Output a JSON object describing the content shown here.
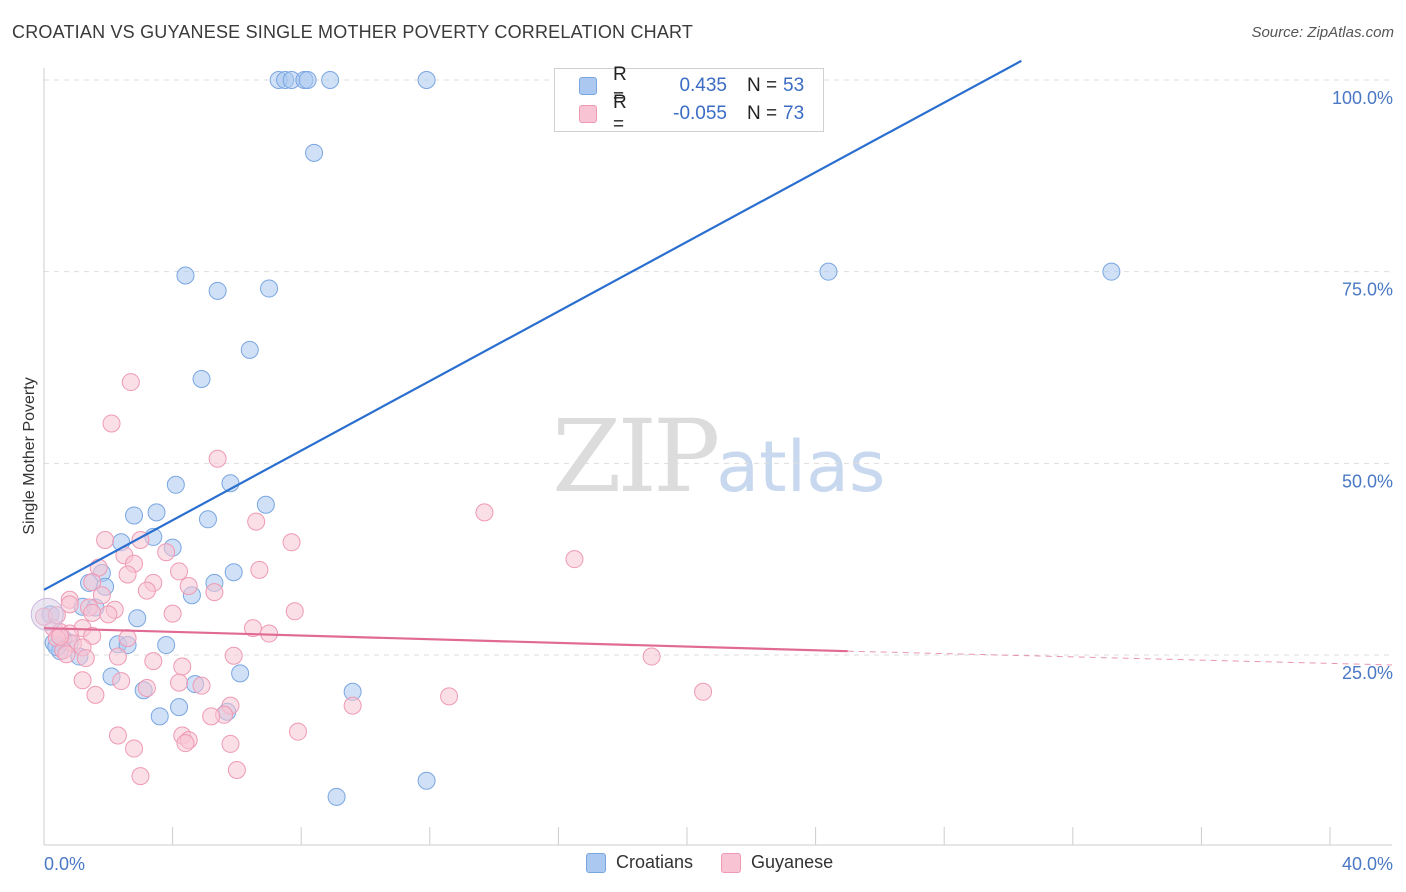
{
  "title": "CROATIAN VS GUYANESE SINGLE MOTHER POVERTY CORRELATION CHART",
  "source": "Source: ZipAtlas.com",
  "watermark": {
    "zip": "ZIP",
    "atlas": "atlas"
  },
  "legend": {
    "rows": [
      {
        "r_label": "R =",
        "r_value": "0.435",
        "n_label": "N =",
        "n_value": "53",
        "color": "#aac8f0",
        "border": "#7aa6e0"
      },
      {
        "r_label": "R =",
        "r_value": "-0.055",
        "n_label": "N =",
        "n_value": "73",
        "color": "#f8c4d4",
        "border": "#ee9ab4"
      }
    ]
  },
  "bottom_legend": [
    {
      "label": "Croatians",
      "color": "#aac8f0",
      "border": "#7aa6e0"
    },
    {
      "label": "Guyanese",
      "color": "#f8c4d4",
      "border": "#ee9ab4"
    }
  ],
  "chart_data": {
    "type": "scatter",
    "title": "CROATIAN VS GUYANESE SINGLE MOTHER POVERTY CORRELATION CHART",
    "xlabel": "",
    "ylabel": "Single Mother Poverty",
    "xlim": [
      0,
      40
    ],
    "ylim": [
      0,
      105
    ],
    "x_tick_labels": [
      {
        "value": 0,
        "label": "0.0%"
      },
      {
        "value": 40,
        "label": "40.0%"
      }
    ],
    "y_tick_labels": [
      {
        "value": 25,
        "label": "25.0%"
      },
      {
        "value": 50,
        "label": "50.0%"
      },
      {
        "value": 75,
        "label": "75.0%"
      },
      {
        "value": 100,
        "label": "100.0%"
      }
    ],
    "grid": true,
    "legend_position": "top-center",
    "series": [
      {
        "name": "Croatians",
        "color": "#7aa6e0",
        "fill": "#aac8f0",
        "trend": {
          "x": [
            0,
            30.4
          ],
          "y": [
            33.5,
            102.5
          ],
          "color": "#2a6fd0"
        },
        "points": [
          [
            7.3,
            100
          ],
          [
            7.5,
            100
          ],
          [
            7.7,
            100
          ],
          [
            8.1,
            100
          ],
          [
            8.2,
            100
          ],
          [
            8.9,
            100
          ],
          [
            11.9,
            100
          ],
          [
            8.4,
            90.5
          ],
          [
            4.4,
            74.5
          ],
          [
            5.4,
            72.5
          ],
          [
            7.0,
            72.8
          ],
          [
            6.4,
            64.8
          ],
          [
            4.9,
            61
          ],
          [
            24.4,
            75
          ],
          [
            33.2,
            75
          ],
          [
            4.1,
            47.2
          ],
          [
            5.8,
            47.4
          ],
          [
            6.9,
            44.6
          ],
          [
            3.5,
            43.6
          ],
          [
            2.8,
            43.2
          ],
          [
            5.1,
            42.7
          ],
          [
            3.4,
            40.4
          ],
          [
            2.4,
            39.7
          ],
          [
            4.0,
            39.0
          ],
          [
            1.8,
            35.7
          ],
          [
            1.4,
            34.4
          ],
          [
            1.9,
            33.9
          ],
          [
            5.3,
            34.4
          ],
          [
            5.9,
            35.8
          ],
          [
            4.6,
            32.8
          ],
          [
            0.2,
            30.3
          ],
          [
            1.2,
            31.3
          ],
          [
            1.6,
            31.2
          ],
          [
            2.9,
            29.8
          ],
          [
            0.3,
            26.6
          ],
          [
            0.6,
            27.1
          ],
          [
            0.8,
            26.6
          ],
          [
            0.5,
            25.5
          ],
          [
            2.3,
            26.4
          ],
          [
            2.6,
            26.3
          ],
          [
            3.8,
            26.3
          ],
          [
            1.1,
            24.8
          ],
          [
            2.1,
            22.2
          ],
          [
            3.1,
            20.4
          ],
          [
            4.7,
            21.2
          ],
          [
            6.1,
            22.6
          ],
          [
            9.6,
            20.2
          ],
          [
            3.6,
            17.0
          ],
          [
            4.2,
            18.2
          ],
          [
            5.7,
            17.6
          ],
          [
            11.9,
            8.6
          ],
          [
            9.1,
            6.5
          ],
          [
            0.4,
            26.1
          ]
        ]
      },
      {
        "name": "Guyanese",
        "color": "#ee9ab4",
        "fill": "#f8c4d4",
        "trend": {
          "x": [
            0,
            25.0
          ],
          "y": [
            28.5,
            25.5
          ],
          "color": "#e06a94",
          "dash_extend_to": 40,
          "dash_y": 23.7
        },
        "points": [
          [
            2.7,
            60.6
          ],
          [
            2.1,
            55.2
          ],
          [
            5.4,
            50.6
          ],
          [
            13.7,
            43.6
          ],
          [
            6.6,
            42.4
          ],
          [
            7.7,
            39.7
          ],
          [
            1.9,
            40.0
          ],
          [
            3.0,
            40.0
          ],
          [
            3.8,
            38.4
          ],
          [
            2.5,
            38.0
          ],
          [
            16.5,
            37.5
          ],
          [
            2.8,
            36.9
          ],
          [
            1.7,
            36.4
          ],
          [
            4.2,
            35.9
          ],
          [
            6.7,
            36.1
          ],
          [
            2.6,
            35.5
          ],
          [
            1.5,
            34.5
          ],
          [
            3.4,
            34.4
          ],
          [
            4.5,
            34.0
          ],
          [
            3.2,
            33.4
          ],
          [
            5.3,
            33.2
          ],
          [
            1.8,
            32.8
          ],
          [
            0.8,
            32.2
          ],
          [
            0.8,
            31.6
          ],
          [
            1.4,
            31.2
          ],
          [
            2.2,
            30.9
          ],
          [
            1.5,
            30.5
          ],
          [
            2.0,
            30.3
          ],
          [
            4.0,
            30.4
          ],
          [
            7.8,
            30.7
          ],
          [
            0.3,
            28.5
          ],
          [
            0.5,
            28.0
          ],
          [
            1.2,
            28.5
          ],
          [
            0.8,
            27.8
          ],
          [
            1.5,
            27.5
          ],
          [
            2.6,
            27.2
          ],
          [
            6.5,
            28.5
          ],
          [
            7.0,
            27.8
          ],
          [
            0.4,
            27.2
          ],
          [
            0.9,
            26.5
          ],
          [
            1.2,
            26.0
          ],
          [
            0.6,
            25.6
          ],
          [
            0.7,
            25.1
          ],
          [
            1.3,
            24.6
          ],
          [
            2.3,
            24.8
          ],
          [
            3.4,
            24.2
          ],
          [
            4.3,
            23.5
          ],
          [
            5.9,
            24.9
          ],
          [
            18.9,
            24.8
          ],
          [
            1.2,
            21.7
          ],
          [
            2.4,
            21.6
          ],
          [
            4.2,
            21.4
          ],
          [
            4.9,
            21.0
          ],
          [
            3.2,
            20.7
          ],
          [
            1.6,
            19.8
          ],
          [
            12.6,
            19.6
          ],
          [
            20.5,
            20.2
          ],
          [
            5.8,
            18.4
          ],
          [
            9.6,
            18.4
          ],
          [
            5.6,
            17.2
          ],
          [
            5.2,
            17.0
          ],
          [
            2.3,
            14.5
          ],
          [
            4.3,
            14.5
          ],
          [
            7.9,
            15.0
          ],
          [
            4.5,
            13.9
          ],
          [
            4.4,
            13.5
          ],
          [
            5.8,
            13.4
          ],
          [
            2.8,
            12.8
          ],
          [
            6.0,
            10.0
          ],
          [
            3.0,
            9.2
          ],
          [
            0.0,
            30.0
          ],
          [
            0.4,
            30.2
          ],
          [
            0.5,
            27.4
          ]
        ]
      }
    ]
  }
}
